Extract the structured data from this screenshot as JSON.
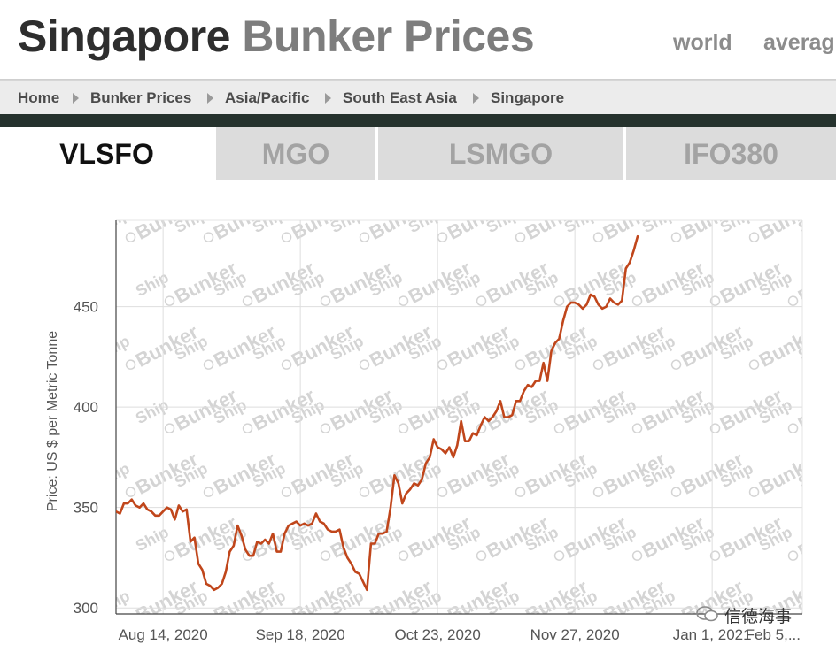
{
  "header": {
    "title_part1": "Singapore",
    "title_part2": "Bunker Prices",
    "links": [
      "world",
      "averag"
    ]
  },
  "breadcrumb": [
    "Home",
    "Bunker Prices",
    "Asia/Pacific",
    "South East Asia",
    "Singapore"
  ],
  "tabs": [
    {
      "label": "VLSFO",
      "active": true
    },
    {
      "label": "MGO",
      "active": false
    },
    {
      "label": "LSMGO",
      "active": false
    },
    {
      "label": "IFO380",
      "active": false
    }
  ],
  "watermark": {
    "left": "Ship",
    "right": "Bunker"
  },
  "wechat_label": "信德海事",
  "chart_data": {
    "type": "line",
    "title": "",
    "xlabel": "",
    "ylabel": "Price: US $ per Metric Tonne",
    "ylim": [
      297,
      493
    ],
    "xlim": [
      -12,
      163
    ],
    "y_ticks": [
      300,
      350,
      400,
      450
    ],
    "x_ticks": [
      {
        "x": 0,
        "label": "Aug 14, 2020"
      },
      {
        "x": 35,
        "label": "Sep 18, 2020"
      },
      {
        "x": 70,
        "label": "Oct 23, 2020"
      },
      {
        "x": 105,
        "label": "Nov 27, 2020"
      },
      {
        "x": 140,
        "label": "Jan 1, 2021"
      },
      {
        "x": 175,
        "label": "Feb 5,..."
      }
    ],
    "grid": true,
    "series": [
      {
        "name": "VLSFO",
        "color": "#c0461b",
        "points": [
          [
            -12,
            348
          ],
          [
            -11,
            347
          ],
          [
            -10,
            352
          ],
          [
            -9,
            352
          ],
          [
            -8,
            354
          ],
          [
            -7,
            351
          ],
          [
            -6,
            350
          ],
          [
            -5,
            352
          ],
          [
            -4,
            349
          ],
          [
            -3,
            348
          ],
          [
            -2,
            346
          ],
          [
            -1,
            346
          ],
          [
            0,
            348
          ],
          [
            1,
            350
          ],
          [
            2,
            349
          ],
          [
            3,
            344
          ],
          [
            4,
            351
          ],
          [
            5,
            348
          ],
          [
            6,
            349
          ],
          [
            7,
            333
          ],
          [
            8,
            335
          ],
          [
            9,
            322
          ],
          [
            10,
            319
          ],
          [
            11,
            312
          ],
          [
            12,
            311
          ],
          [
            13,
            309
          ],
          [
            14,
            310
          ],
          [
            15,
            312
          ],
          [
            16,
            318
          ],
          [
            17,
            328
          ],
          [
            18,
            331
          ],
          [
            19,
            341
          ],
          [
            20,
            336
          ],
          [
            21,
            329
          ],
          [
            22,
            326
          ],
          [
            23,
            326
          ],
          [
            24,
            333
          ],
          [
            25,
            332
          ],
          [
            26,
            334
          ],
          [
            27,
            332
          ],
          [
            28,
            337
          ],
          [
            29,
            328
          ],
          [
            30,
            328
          ],
          [
            31,
            337
          ],
          [
            32,
            341
          ],
          [
            33,
            342
          ],
          [
            34,
            343
          ],
          [
            35,
            341
          ],
          [
            36,
            342
          ],
          [
            37,
            341
          ],
          [
            38,
            342
          ],
          [
            39,
            347
          ],
          [
            40,
            343
          ],
          [
            41,
            342
          ],
          [
            42,
            339
          ],
          [
            43,
            338
          ],
          [
            44,
            338
          ],
          [
            45,
            339
          ],
          [
            46,
            330
          ],
          [
            47,
            325
          ],
          [
            48,
            322
          ],
          [
            49,
            318
          ],
          [
            50,
            317
          ],
          [
            51,
            313
          ],
          [
            52,
            309
          ],
          [
            53,
            332
          ],
          [
            54,
            332
          ],
          [
            55,
            337
          ],
          [
            56,
            337
          ],
          [
            57,
            338
          ],
          [
            58,
            350
          ],
          [
            59,
            366
          ],
          [
            60,
            362
          ],
          [
            61,
            352
          ],
          [
            62,
            357
          ],
          [
            63,
            359
          ],
          [
            64,
            362
          ],
          [
            65,
            361
          ],
          [
            66,
            364
          ],
          [
            67,
            372
          ],
          [
            68,
            375
          ],
          [
            69,
            384
          ],
          [
            70,
            380
          ],
          [
            71,
            379
          ],
          [
            72,
            377
          ],
          [
            73,
            380
          ],
          [
            74,
            375
          ],
          [
            75,
            381
          ],
          [
            76,
            393
          ],
          [
            77,
            383
          ],
          [
            78,
            383
          ],
          [
            79,
            387
          ],
          [
            80,
            386
          ],
          [
            81,
            391
          ],
          [
            82,
            395
          ],
          [
            83,
            393
          ],
          [
            84,
            395
          ],
          [
            85,
            398
          ],
          [
            86,
            403
          ],
          [
            87,
            395
          ],
          [
            88,
            395
          ],
          [
            89,
            396
          ],
          [
            90,
            403
          ],
          [
            91,
            403
          ],
          [
            92,
            408
          ],
          [
            93,
            411
          ],
          [
            94,
            410
          ],
          [
            95,
            413
          ],
          [
            96,
            413
          ],
          [
            97,
            422
          ],
          [
            98,
            413
          ],
          [
            99,
            428
          ],
          [
            100,
            432
          ],
          [
            101,
            434
          ],
          [
            102,
            443
          ],
          [
            103,
            450
          ],
          [
            104,
            452
          ],
          [
            105,
            452
          ],
          [
            106,
            451
          ],
          [
            107,
            449
          ],
          [
            108,
            451
          ],
          [
            109,
            456
          ],
          [
            110,
            455
          ],
          [
            111,
            451
          ],
          [
            112,
            449
          ],
          [
            113,
            450
          ],
          [
            114,
            454
          ],
          [
            115,
            452
          ],
          [
            116,
            451
          ],
          [
            117,
            453
          ],
          [
            118,
            469
          ],
          [
            119,
            472
          ],
          [
            120,
            478
          ],
          [
            121,
            485
          ]
        ]
      }
    ]
  }
}
